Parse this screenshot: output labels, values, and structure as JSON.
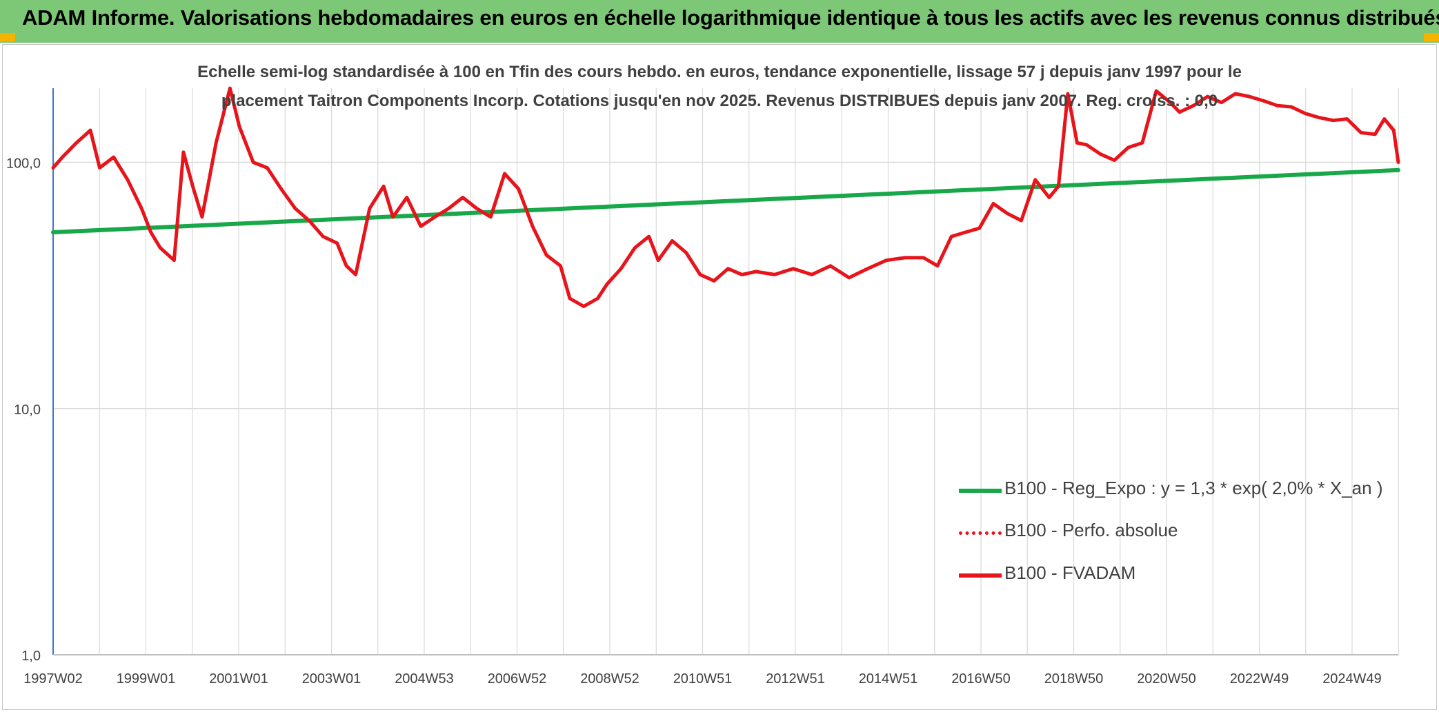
{
  "header": {
    "title": "ADAM Informe. Valorisations hebdomadaires en euros en échelle logarithmique identique à tous les actifs avec les revenus connus distribués"
  },
  "colors": {
    "banner": "#7cc876",
    "corner_accent": "#f5b400",
    "series_fvadam": "#e8141b",
    "series_perfo": "#e8141b",
    "series_trend": "#18a84a",
    "grid": "#d9d9d9"
  },
  "chart_data": {
    "type": "line",
    "title_line1": "Echelle semi-log standardisée à 100 en Tfin des cours hebdo. en euros, tendance exponentielle, lissage 57 j depuis janv 1997 pour le",
    "title_line2": "placement Taitron Components Incorp. Cotations jusqu'en nov 2025. Revenus DISTRIBUES depuis janv 2007. Reg. croiss. : 0,0",
    "y_scale": "log",
    "ylim": [
      1,
      200
    ],
    "y_ticks": [
      "1,0",
      "10,0",
      "100,0"
    ],
    "x_ticks": [
      "1997W02",
      "1999W01",
      "2001W01",
      "2003W01",
      "2004W53",
      "2006W52",
      "2008W52",
      "2010W51",
      "2012W51",
      "2014W51",
      "2016W50",
      "2018W50",
      "2020W50",
      "2022W49",
      "2024W49"
    ],
    "xlim": [
      1997.0,
      2025.9
    ],
    "grid": true,
    "legend_position": "bottom-right",
    "legend": [
      {
        "label": "B100 - Reg_Expo : y = 1,3 * exp( 2,0% *  X_an )",
        "style": "solid-green"
      },
      {
        "label": "B100 - Perfo. absolue",
        "style": "dotted-red"
      },
      {
        "label": "B100 - FVADAM",
        "style": "solid-red"
      }
    ],
    "series": [
      {
        "name": "B100 - Reg_Expo : y = 1,3 * exp( 2,0% *  X_an )",
        "x": [
          1997.0,
          2025.9
        ],
        "y": [
          52,
          93
        ]
      },
      {
        "name": "B100 - FVADAM",
        "x": [
          1997.0,
          1997.2,
          1997.5,
          1997.8,
          1998.0,
          1998.3,
          1998.6,
          1998.9,
          1999.1,
          1999.3,
          1999.6,
          1999.8,
          2000.0,
          2000.2,
          2000.5,
          2000.8,
          2001.0,
          2001.3,
          2001.6,
          2001.9,
          2002.2,
          2002.5,
          2002.8,
          2003.1,
          2003.3,
          2003.5,
          2003.8,
          2004.1,
          2004.3,
          2004.6,
          2004.9,
          2005.2,
          2005.5,
          2005.8,
          2006.1,
          2006.4,
          2006.7,
          2007.0,
          2007.3,
          2007.6,
          2007.9,
          2008.1,
          2008.4,
          2008.7,
          2008.9,
          2009.2,
          2009.5,
          2009.8,
          2010.0,
          2010.3,
          2010.6,
          2010.9,
          2011.2,
          2011.5,
          2011.8,
          2012.1,
          2012.5,
          2012.9,
          2013.3,
          2013.7,
          2014.1,
          2014.5,
          2014.9,
          2015.3,
          2015.7,
          2016.0,
          2016.3,
          2016.6,
          2016.9,
          2017.2,
          2017.5,
          2017.8,
          2018.1,
          2018.4,
          2018.6,
          2018.8,
          2019.0,
          2019.2,
          2019.5,
          2019.8,
          2020.1,
          2020.4,
          2020.7,
          2021.0,
          2021.2,
          2021.5,
          2021.8,
          2022.1,
          2022.4,
          2022.7,
          2023.0,
          2023.3,
          2023.6,
          2023.9,
          2024.2,
          2024.5,
          2024.8,
          2025.1,
          2025.4,
          2025.6,
          2025.8,
          2025.9
        ],
        "y": [
          95,
          105,
          120,
          135,
          95,
          105,
          85,
          65,
          52,
          45,
          40,
          110,
          80,
          60,
          120,
          200,
          140,
          100,
          95,
          78,
          65,
          58,
          50,
          47,
          38,
          35,
          65,
          80,
          60,
          72,
          55,
          60,
          65,
          72,
          65,
          60,
          90,
          78,
          55,
          42,
          38,
          28,
          26,
          28,
          32,
          37,
          45,
          50,
          40,
          48,
          43,
          35,
          33,
          37,
          35,
          36,
          35,
          37,
          35,
          38,
          34,
          37,
          40,
          41,
          41,
          38,
          50,
          52,
          54,
          68,
          62,
          58,
          85,
          72,
          80,
          190,
          120,
          118,
          108,
          102,
          115,
          120,
          195,
          175,
          160,
          170,
          185,
          175,
          190,
          185,
          178,
          170,
          168,
          158,
          152,
          148,
          150,
          132,
          130,
          150,
          135,
          100
        ]
      }
    ]
  }
}
